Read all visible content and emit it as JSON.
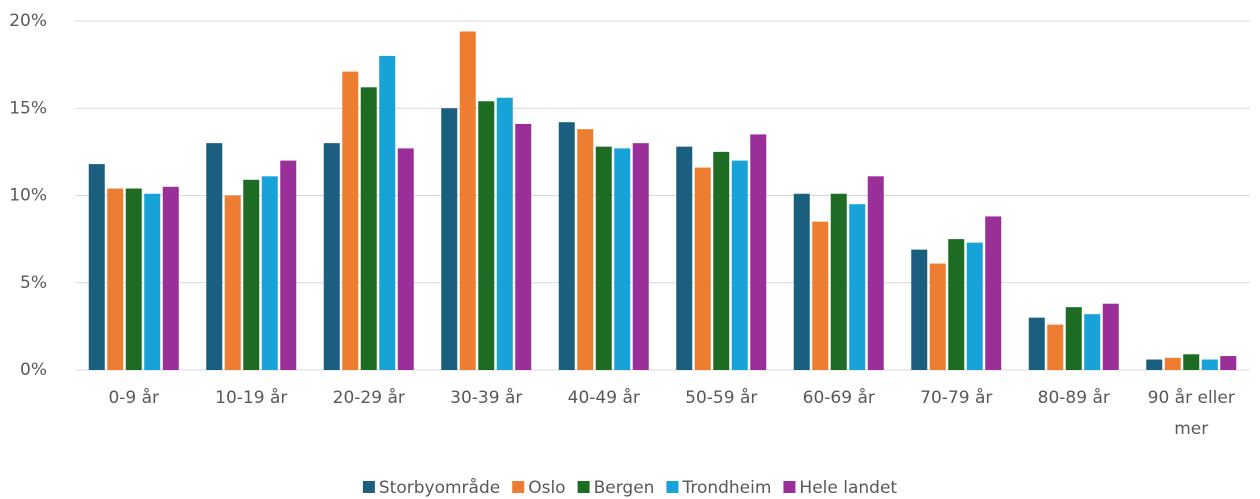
{
  "chart_data": {
    "type": "bar",
    "categories": [
      "0-9 år",
      "10-19 år",
      "20-29 år",
      "30-39 år",
      "40-49 år",
      "50-59 år",
      "60-69 år",
      "70-79 år",
      "80-89 år",
      "90 år eller mer"
    ],
    "series": [
      {
        "name": "Storbyområde",
        "color": "#1b5f7f",
        "values": [
          11.8,
          13.0,
          13.0,
          15.0,
          14.2,
          12.8,
          10.1,
          6.9,
          3.0,
          0.6
        ]
      },
      {
        "name": "Oslo",
        "color": "#ed7d31",
        "values": [
          10.4,
          10.0,
          17.1,
          19.4,
          13.8,
          11.6,
          8.5,
          6.1,
          2.6,
          0.7
        ]
      },
      {
        "name": "Bergen",
        "color": "#1e6b24",
        "values": [
          10.4,
          10.9,
          16.2,
          15.4,
          12.8,
          12.5,
          10.1,
          7.5,
          3.6,
          0.9
        ]
      },
      {
        "name": "Trondheim",
        "color": "#17a2d8",
        "values": [
          10.1,
          11.1,
          18.0,
          15.6,
          12.7,
          12.0,
          9.5,
          7.3,
          3.2,
          0.6
        ]
      },
      {
        "name": "Hele landet",
        "color": "#9b2f9a",
        "values": [
          10.5,
          12.0,
          12.7,
          14.1,
          13.0,
          13.5,
          11.1,
          8.8,
          3.8,
          0.8
        ]
      }
    ],
    "ylim": [
      0,
      20
    ],
    "yticks": [
      {
        "value": 0,
        "label": "0%"
      },
      {
        "value": 5,
        "label": "5%"
      },
      {
        "value": 10,
        "label": "10%"
      },
      {
        "value": 15,
        "label": "15%"
      },
      {
        "value": 20,
        "label": "20%"
      }
    ],
    "grid": true,
    "legend": "bottom"
  }
}
